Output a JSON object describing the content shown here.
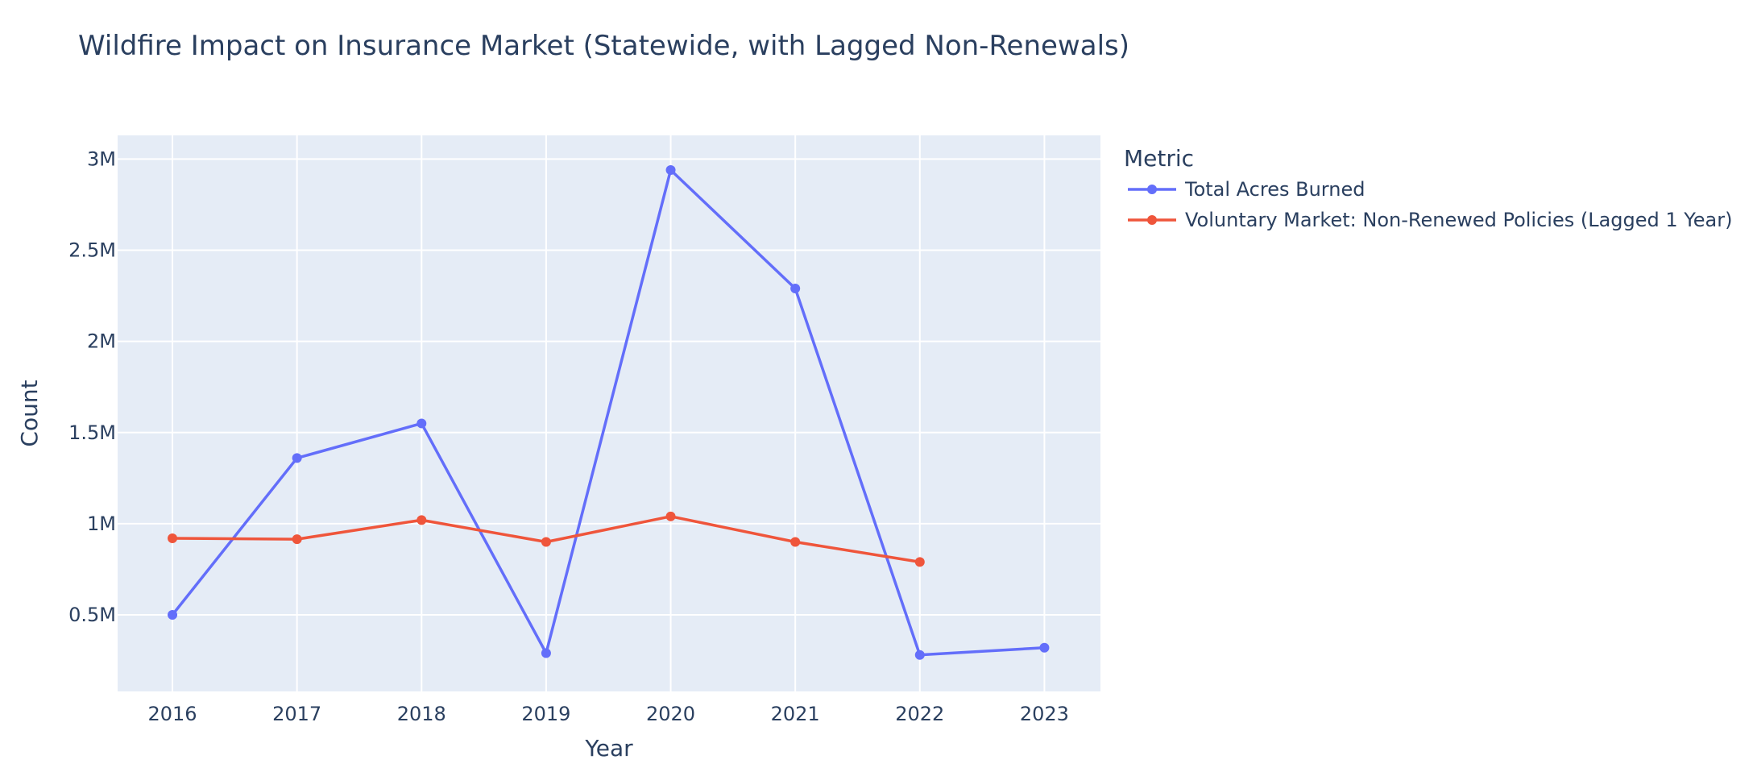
{
  "chart_data": {
    "type": "line",
    "title": "Wildfire Impact on Insurance Market (Statewide, with Lagged Non-Renewals)",
    "xlabel": "Year",
    "ylabel": "Count",
    "x": [
      2016,
      2017,
      2018,
      2019,
      2020,
      2021,
      2022,
      2023
    ],
    "x_tick_labels": [
      "2016",
      "2017",
      "2018",
      "2019",
      "2020",
      "2021",
      "2022",
      "2023"
    ],
    "xlim": [
      2015.56,
      2023.45
    ],
    "ylim": [
      80000,
      3130000
    ],
    "y_ticks": [
      500000,
      1000000,
      1500000,
      2000000,
      2500000,
      3000000
    ],
    "y_tick_labels": [
      "0.5M",
      "1M",
      "1.5M",
      "2M",
      "2.5M",
      "3M"
    ],
    "grid": true,
    "plot_background": "#e5ecf6",
    "legend": {
      "title": "Metric",
      "placement": "right"
    },
    "series": [
      {
        "name": "Total Acres Burned",
        "color": "#636efa",
        "x": [
          2016,
          2017,
          2018,
          2019,
          2020,
          2021,
          2022,
          2023
        ],
        "values": [
          500000,
          1360000,
          1550000,
          290000,
          2940000,
          2290000,
          280000,
          320000
        ]
      },
      {
        "name": "Voluntary Market: Non-Renewed Policies (Lagged 1 Year)",
        "color": "#ef553b",
        "x": [
          2016,
          2017,
          2018,
          2019,
          2020,
          2021,
          2022
        ],
        "values": [
          920000,
          915000,
          1020000,
          900000,
          1040000,
          900000,
          790000
        ]
      }
    ]
  }
}
